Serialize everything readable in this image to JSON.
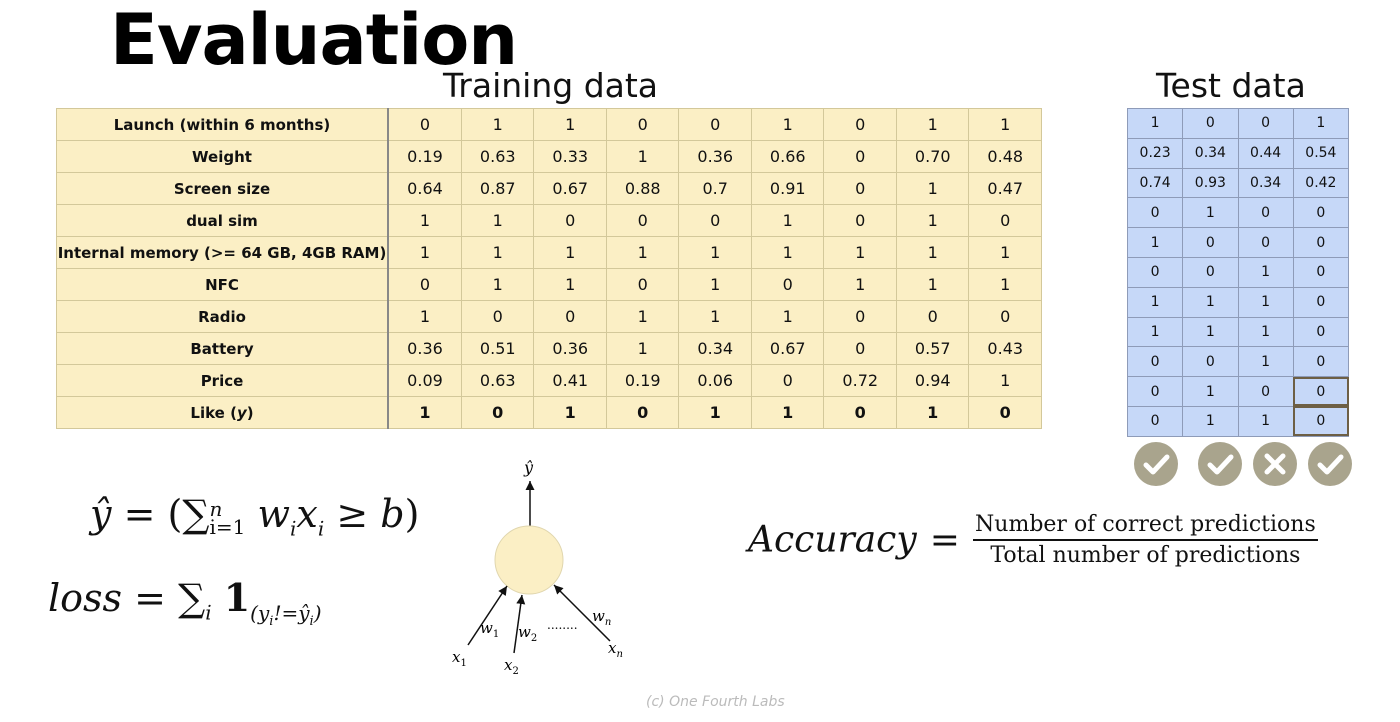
{
  "title": "Evaluation",
  "training": {
    "heading": "Training data",
    "rows": [
      {
        "label": "Launch (within 6 months)",
        "values": [
          "0",
          "1",
          "1",
          "0",
          "0",
          "1",
          "0",
          "1",
          "1"
        ]
      },
      {
        "label": "Weight",
        "values": [
          "0.19",
          "0.63",
          "0.33",
          "1",
          "0.36",
          "0.66",
          "0",
          "0.70",
          "0.48"
        ]
      },
      {
        "label": "Screen size",
        "values": [
          "0.64",
          "0.87",
          "0.67",
          "0.88",
          "0.7",
          "0.91",
          "0",
          "1",
          "0.47"
        ]
      },
      {
        "label": "dual sim",
        "values": [
          "1",
          "1",
          "0",
          "0",
          "0",
          "1",
          "0",
          "1",
          "0"
        ]
      },
      {
        "label": "Internal memory (>= 64 GB, 4GB RAM)",
        "values": [
          "1",
          "1",
          "1",
          "1",
          "1",
          "1",
          "1",
          "1",
          "1"
        ]
      },
      {
        "label": "NFC",
        "values": [
          "0",
          "1",
          "1",
          "0",
          "1",
          "0",
          "1",
          "1",
          "1"
        ]
      },
      {
        "label": "Radio",
        "values": [
          "1",
          "0",
          "0",
          "1",
          "1",
          "1",
          "0",
          "0",
          "0"
        ]
      },
      {
        "label": "Battery",
        "values": [
          "0.36",
          "0.51",
          "0.36",
          "1",
          "0.34",
          "0.67",
          "0",
          "0.57",
          "0.43"
        ]
      },
      {
        "label": "Price",
        "values": [
          "0.09",
          "0.63",
          "0.41",
          "0.19",
          "0.06",
          "0",
          "0.72",
          "0.94",
          "1"
        ]
      },
      {
        "label_prefix": "Like (",
        "label_var": "y",
        "label_suffix": ")",
        "values": [
          "1",
          "0",
          "1",
          "0",
          "1",
          "1",
          "0",
          "1",
          "0"
        ]
      }
    ]
  },
  "test": {
    "heading": "Test data",
    "rows": [
      [
        "1",
        "0",
        "0",
        "1"
      ],
      [
        "0.23",
        "0.34",
        "0.44",
        "0.54"
      ],
      [
        "0.74",
        "0.93",
        "0.34",
        "0.42"
      ],
      [
        "0",
        "1",
        "0",
        "0"
      ],
      [
        "1",
        "0",
        "0",
        "0"
      ],
      [
        "0",
        "0",
        "1",
        "0"
      ],
      [
        "1",
        "1",
        "1",
        "0"
      ],
      [
        "1",
        "1",
        "1",
        "0"
      ],
      [
        "0",
        "0",
        "1",
        "0"
      ],
      [
        "0",
        "1",
        "0",
        "0"
      ],
      [
        "0",
        "1",
        "1",
        "0"
      ]
    ],
    "results": [
      "check-icon",
      "check-icon",
      "cross-icon",
      "check-icon"
    ],
    "colors": {
      "result_bg": "#a9a48d",
      "highlight_border": "#6d5f45"
    }
  },
  "equations": {
    "prediction": {
      "lhs": "ŷ",
      "eq": "=",
      "sum": "∑",
      "sup": "n",
      "sub": "i=1",
      "term": "w",
      "term_sub": "i",
      "term2": "x",
      "term2_sub": "i",
      "rel": "≥",
      "b": "b"
    },
    "loss": {
      "lhs": "loss",
      "eq": "=",
      "sum": "∑",
      "sub": "i",
      "one": "1",
      "ind": "(y",
      "ind_sub": "i",
      "ind_mid": "!=ŷ",
      "ind_sub2": "i",
      "ind_end": ")"
    },
    "accuracy": {
      "lhs": "Accuracy",
      "eq": "=",
      "numerator": "Number of correct predictions",
      "denominator": "Total number of predictions"
    }
  },
  "perceptron": {
    "output": "ŷ",
    "weights": [
      "w",
      "w",
      "w"
    ],
    "weight_subs": [
      "1",
      "2",
      "n"
    ],
    "inputs": [
      "x",
      "x",
      "x"
    ],
    "input_subs": [
      "1",
      "2",
      "n"
    ],
    "ellipsis": "........",
    "node_color": "#fbefc5"
  },
  "footer": "(c) One Fourth Labs"
}
